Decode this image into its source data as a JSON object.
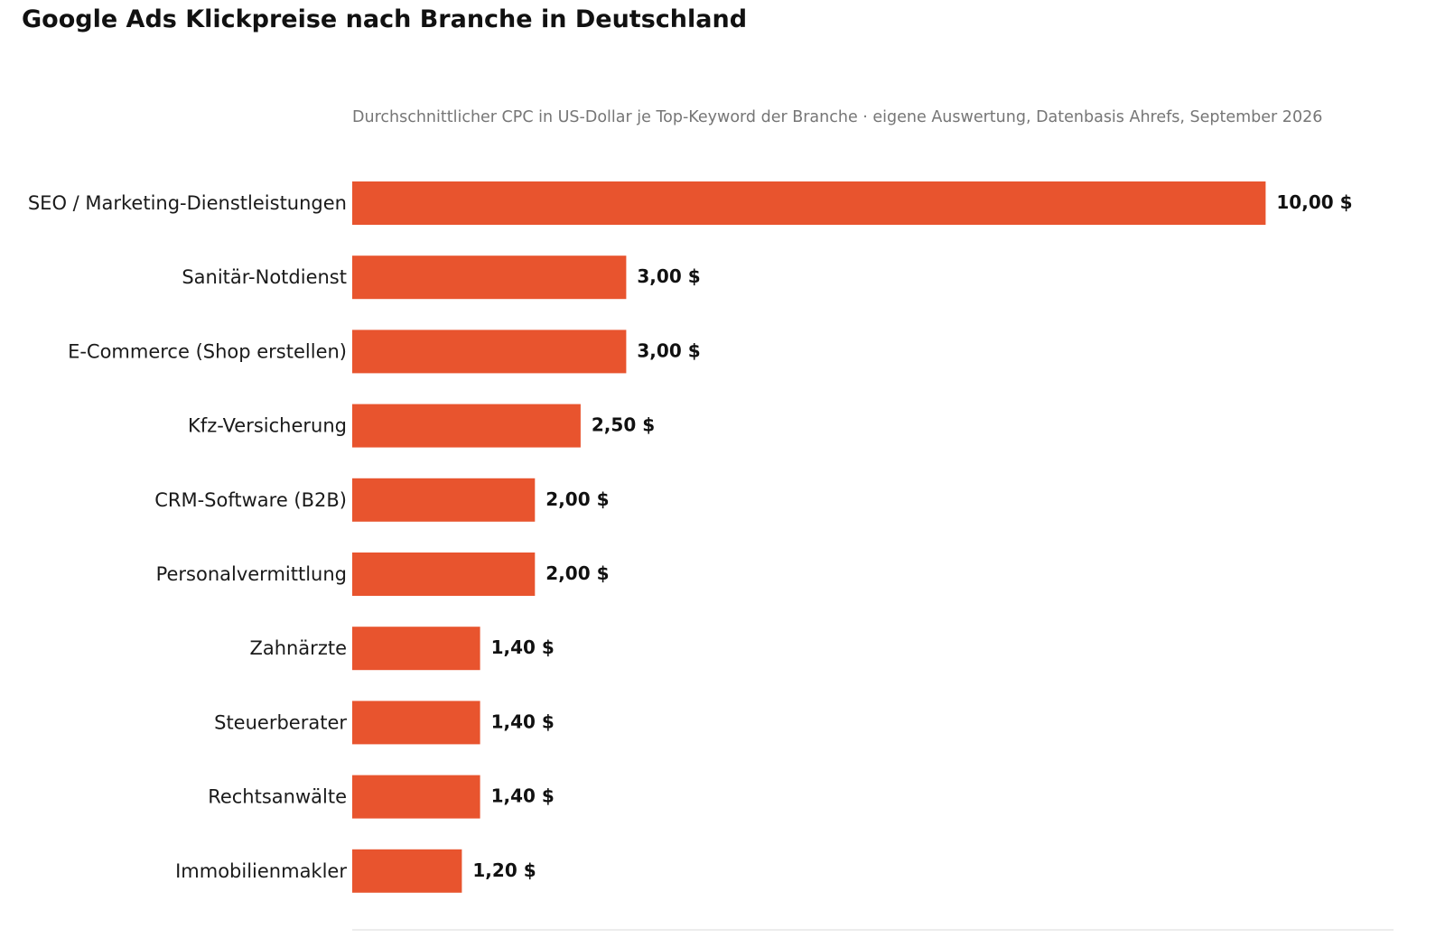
{
  "chart_data": {
    "type": "bar",
    "orientation": "horizontal",
    "title": "Google Ads Klickpreise nach Branche in Deutschland",
    "subtitle": "Durchschnittlicher CPC in US-Dollar je Top-Keyword der Branche · eigene Auswertung, Datenbasis Ahrefs, September 2026",
    "categories": [
      "SEO / Marketing-Dienstleistungen",
      "Sanitär-Notdienst",
      "E-Commerce (Shop erstellen)",
      "Kfz-Versicherung",
      "CRM-Software (B2B)",
      "Personalvermittlung",
      "Zahnärzte",
      "Steuerberater",
      "Rechtsanwälte",
      "Immobilienmakler"
    ],
    "values": [
      10.0,
      3.0,
      3.0,
      2.5,
      2.0,
      2.0,
      1.4,
      1.4,
      1.4,
      1.2
    ],
    "value_labels": [
      "10,00 $",
      "3,00 $",
      "3,00 $",
      "2,50 $",
      "2,00 $",
      "2,00 $",
      "1,40 $",
      "1,40 $",
      "1,40 $",
      "1,20 $"
    ],
    "unit": "$",
    "xlim": [
      0,
      11.4
    ],
    "grid": false,
    "legend": "none",
    "colors": {
      "bar": "#e8542e",
      "axis_line": "#e5e5e5"
    }
  }
}
